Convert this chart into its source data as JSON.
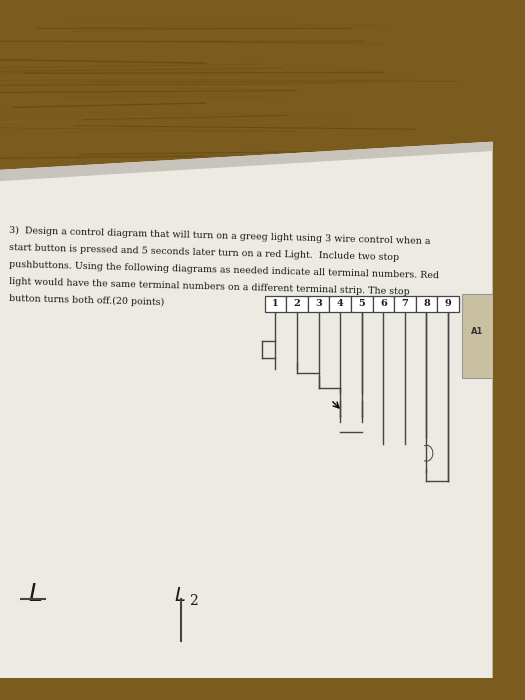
{
  "wood_color": "#7a5c1e",
  "wood_color2": "#6b5018",
  "paper_color": "#edeae4",
  "paper_shadow": "#c8c4bc",
  "paper_edge": "#b0aca4",
  "text_color": "#1a1a1a",
  "line_color": "#444444",
  "question_text_line1": "3)  Design a control diagram that will turn on a greeg light using 3 wire control when a",
  "question_text_line2": "start button is pressed and 5 seconds later turn on a red Light.  Include two stop",
  "question_text_line3": "pushbuttons. Using the following diagrams as needed indicate all terminal numbers. Red",
  "question_text_line4": "light would have the same terminal numbers on a different terminal strip. The stop",
  "question_text_line5": "button turns both off.(20 points)",
  "terminal_labels": [
    "1",
    "2",
    "3",
    "4",
    "5",
    "6",
    "7",
    "8",
    "9"
  ],
  "L1_label": "L",
  "L2_label": "L2"
}
